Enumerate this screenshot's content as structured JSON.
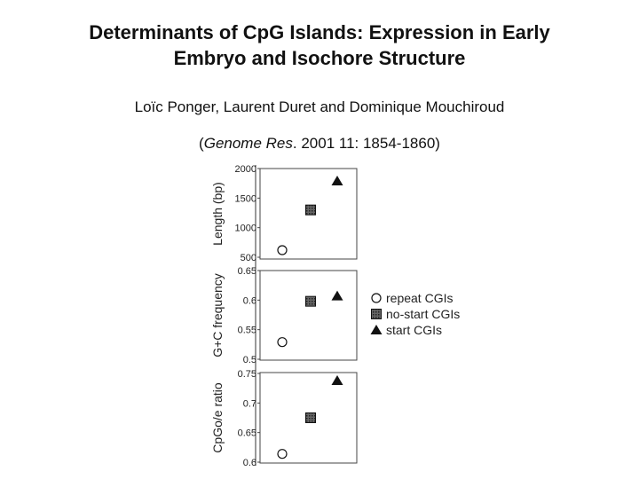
{
  "slide": {
    "title_line1": "Determinants of CpG Islands: Expression in Early",
    "title_line2": "Embryo and Isochore Structure",
    "authors": "Loïc Ponger, Laurent Duret and Dominique Mouchiroud",
    "citation_open": "(",
    "citation_journal": "Genome Res",
    "citation_rest": ". 2001 11: 1854-1860)"
  },
  "chart_data": [
    {
      "type": "scatter",
      "ylabel": "Length (bp)",
      "ylim": [
        500,
        2000
      ],
      "yticks": [
        "2000",
        "1500",
        "1000",
        "500"
      ],
      "ytick_values": [
        2000,
        1500,
        1000,
        500
      ],
      "categories": [
        "repeat CGIs",
        "no-start CGIs",
        "start CGIs"
      ],
      "values": [
        620,
        1300,
        1790
      ]
    },
    {
      "type": "scatter",
      "ylabel": "G+C frequency",
      "ylim": [
        0.5,
        0.65
      ],
      "yticks": [
        "0.65",
        "0.6",
        "0.55",
        "0.5"
      ],
      "ytick_values": [
        0.65,
        0.6,
        0.55,
        0.5
      ],
      "categories": [
        "repeat CGIs",
        "no-start CGIs",
        "start CGIs"
      ],
      "values": [
        0.529,
        0.598,
        0.607
      ]
    },
    {
      "type": "scatter",
      "ylabel": "CpGo/e ratio",
      "ylim": [
        0.6,
        0.75
      ],
      "yticks": [
        "0.75",
        "0.7",
        "0.65",
        "0.6"
      ],
      "ytick_values": [
        0.75,
        0.7,
        0.65,
        0.6
      ],
      "categories": [
        "repeat CGIs",
        "no-start CGIs",
        "start CGIs"
      ],
      "values": [
        0.614,
        0.675,
        0.738
      ]
    }
  ],
  "legend": {
    "position": "right",
    "items": [
      {
        "label": "repeat CGIs",
        "marker": "open-circle-icon"
      },
      {
        "label": "no-start CGIs",
        "marker": "hatched-square-icon"
      },
      {
        "label": "start CGIs",
        "marker": "filled-triangle-icon"
      }
    ]
  },
  "colors": {
    "marker": "#111111",
    "square_fill": "#555555",
    "circle_fill": "#ffffff"
  }
}
